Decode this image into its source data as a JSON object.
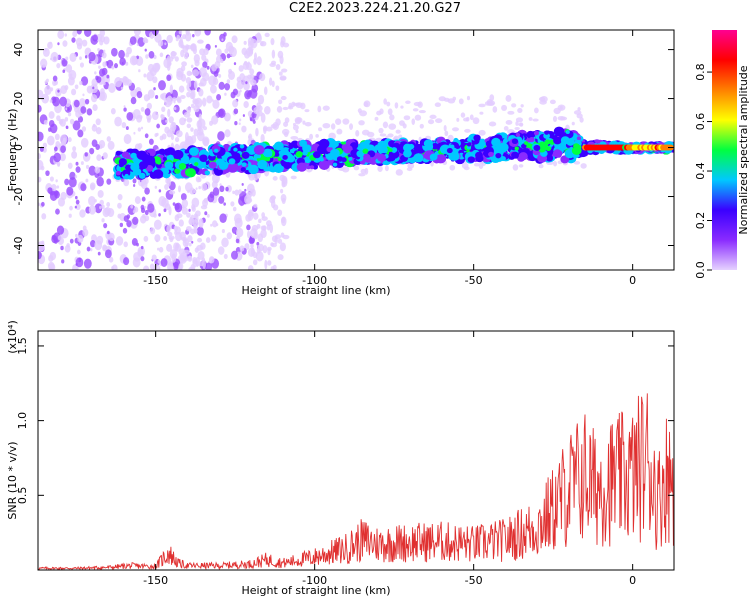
{
  "title": "C2E2.2023.224.21.20.G27",
  "chart_data": [
    {
      "type": "heatmap",
      "xlabel": "Height of straight line (km)",
      "ylabel": "Frequency (Hz)",
      "xlim": [
        -187,
        13
      ],
      "ylim": [
        -50,
        48
      ],
      "x_ticks": [
        -150,
        -100,
        -50,
        0
      ],
      "x_tick_labels": [
        "-150",
        "-100",
        "-50",
        "0"
      ],
      "y_ticks": [
        -40,
        -20,
        0,
        20,
        40
      ],
      "y_tick_labels": [
        "-40",
        "-20",
        "0",
        "20",
        "40"
      ],
      "colorbar": {
        "label": "Normalized spectral amplitude",
        "range": [
          0,
          0.97
        ],
        "ticks": [
          0.0,
          0.2,
          0.4,
          0.6,
          0.8
        ],
        "tick_labels": [
          "0.0",
          "0.2",
          "0.4",
          "0.6",
          "0.8"
        ],
        "colors": [
          "#e6d2ff",
          "#8a2bff",
          "#3a00ff",
          "#00c8ff",
          "#00ff40",
          "#ffff00",
          "#ff8000",
          "#ff0000",
          "#ff0090"
        ]
      },
      "trend": {
        "x": [
          -185,
          -160,
          -140,
          -120,
          -100,
          -80,
          -60,
          -40,
          -20,
          -15,
          0,
          12
        ],
        "y": [
          -6,
          -7,
          -6,
          -4,
          -3,
          -2,
          -1,
          0,
          1,
          0,
          0,
          0
        ],
        "spread": [
          3,
          5,
          5,
          5,
          5,
          4,
          4,
          5,
          6,
          2,
          1,
          1
        ]
      },
      "grid": false
    },
    {
      "type": "line",
      "xlabel": "Height of straight line (km)",
      "ylabel": "SNR (10 * v/v)",
      "y_multiplier": "(x10⁴)",
      "xlim": [
        -187,
        13
      ],
      "ylim": [
        0,
        1.6
      ],
      "x_ticks": [
        -150,
        -100,
        -50,
        0
      ],
      "x_tick_labels": [
        "-150",
        "-100",
        "-50",
        "0"
      ],
      "y_ticks": [
        0.5,
        1.0,
        1.5
      ],
      "y_tick_labels": [
        "0.5",
        "1.0",
        "1.5"
      ],
      "series": [
        {
          "color": "#e03030",
          "x": [
            -187,
            -175,
            -165,
            -158,
            -150,
            -146,
            -143,
            -140,
            -130,
            -120,
            -115,
            -110,
            -100,
            -90,
            -85,
            -80,
            -70,
            -60,
            -50,
            -40,
            -30,
            -25,
            -20,
            -15,
            -12,
            -10,
            -5,
            0,
            2,
            5,
            8,
            10,
            13
          ],
          "y": [
            0.02,
            0.02,
            0.03,
            0.05,
            0.04,
            0.2,
            0.08,
            0.05,
            0.05,
            0.07,
            0.12,
            0.08,
            0.15,
            0.25,
            0.35,
            0.3,
            0.32,
            0.33,
            0.3,
            0.35,
            0.5,
            0.7,
            0.95,
            1.1,
            0.95,
            1.0,
            1.05,
            1.1,
            1.2,
            1.3,
            0.8,
            1.1,
            1.05
          ]
        }
      ],
      "grid": false
    }
  ]
}
